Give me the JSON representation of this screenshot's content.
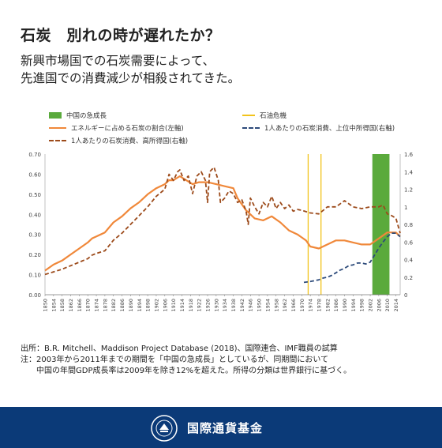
{
  "header": {
    "title": "石炭　別れの時が遅れたか？",
    "subtitle_lines": [
      "新興市場国での石炭需要によって、",
      "先進国での消費減少が相殺されてきた。"
    ]
  },
  "legend": {
    "china": "中国の急成長",
    "oil_crisis": "石油危機",
    "share": "エネルギーに占める石炭の割合(左軸)",
    "upper_middle": "1人あたりの石炭消費、上位中所得国(右軸)",
    "high_income": "1人あたりの石炭消費、高所得国(右軸)"
  },
  "notes": {
    "source": "出所：B.R. Mitchell、Maddison Project Database (2018)、国際連合、IMF職員の試算",
    "note1": "注：2003年から2011年までの期間を「中国の急成長」としているが、同期間において",
    "note2": "中国の年間GDP成長率は2009年を除き12%を超えた。所得の分類は世界銀行に基づく。"
  },
  "footer": {
    "brand": "国際通貨基金",
    "seal_text": "INTERNATIONAL MONETARY FUND"
  },
  "colors": {
    "china": "#5aaa3c",
    "oil": "#f2c31c",
    "share": "#f0883a",
    "upper_middle": "#2c4a7a",
    "high_income": "#9c4a1a",
    "footer": "#0b3a78"
  },
  "chart_data": {
    "type": "line",
    "x_range": [
      1850,
      2016
    ],
    "x_ticks": [
      1850,
      1854,
      1858,
      1862,
      1866,
      1870,
      1874,
      1878,
      1882,
      1886,
      1890,
      1894,
      1898,
      1902,
      1906,
      1910,
      1914,
      1918,
      1922,
      1926,
      1930,
      1934,
      1938,
      1942,
      1946,
      1950,
      1954,
      1958,
      1962,
      1966,
      1970,
      1974,
      1978,
      1982,
      1986,
      1990,
      1994,
      1998,
      2002,
      2006,
      2010,
      2014
    ],
    "y_left": {
      "range": [
        0,
        0.7
      ],
      "ticks": [
        "0.00",
        "0.10",
        "0.20",
        "0.30",
        "0.40",
        "0.50",
        "0.60",
        "0.70"
      ]
    },
    "y_right": {
      "range": [
        0,
        1.6
      ],
      "ticks": [
        "0",
        "0.2",
        "0.4",
        "0.6",
        "0.8",
        "1",
        "1.2",
        "1.4",
        "1.6"
      ]
    },
    "shaded_periods": [
      {
        "from": 2003,
        "to": 2011
      }
    ],
    "vertical_lines": [
      1973,
      1979
    ],
    "series": [
      {
        "name": "エネルギーに占める石炭の割合(左軸)",
        "axis": "left",
        "x": [
          1850,
          1854,
          1858,
          1862,
          1866,
          1870,
          1872,
          1874,
          1878,
          1882,
          1886,
          1890,
          1894,
          1898,
          1902,
          1906,
          1908,
          1910,
          1913,
          1916,
          1919,
          1922,
          1926,
          1930,
          1934,
          1938,
          1940,
          1944,
          1948,
          1952,
          1956,
          1960,
          1964,
          1968,
          1972,
          1974,
          1978,
          1982,
          1986,
          1990,
          1994,
          1998,
          2002,
          2006,
          2010,
          2014,
          2016
        ],
        "values": [
          0.12,
          0.15,
          0.17,
          0.2,
          0.23,
          0.26,
          0.28,
          0.29,
          0.31,
          0.36,
          0.39,
          0.43,
          0.46,
          0.5,
          0.53,
          0.55,
          0.57,
          0.57,
          0.59,
          0.57,
          0.55,
          0.56,
          0.56,
          0.55,
          0.54,
          0.53,
          0.48,
          0.42,
          0.38,
          0.37,
          0.39,
          0.36,
          0.32,
          0.3,
          0.27,
          0.24,
          0.23,
          0.25,
          0.27,
          0.27,
          0.26,
          0.25,
          0.25,
          0.28,
          0.31,
          0.31,
          0.29
        ]
      },
      {
        "name": "1人あたりの石炭消費、高所得国(右軸)",
        "axis": "right",
        "x": [
          1850,
          1854,
          1858,
          1862,
          1866,
          1870,
          1872,
          1874,
          1878,
          1882,
          1886,
          1890,
          1894,
          1898,
          1902,
          1906,
          1908,
          1910,
          1912,
          1913,
          1915,
          1917,
          1919,
          1921,
          1923,
          1925,
          1926,
          1927,
          1929,
          1931,
          1932,
          1934,
          1936,
          1938,
          1940,
          1942,
          1944,
          1945,
          1946,
          1948,
          1950,
          1952,
          1954,
          1956,
          1958,
          1960,
          1962,
          1964,
          1966,
          1968,
          1970,
          1974,
          1978,
          1982,
          1986,
          1990,
          1994,
          1998,
          2002,
          2006,
          2008,
          2010,
          2012,
          2014,
          2016
        ],
        "values": [
          0.23,
          0.26,
          0.29,
          0.33,
          0.37,
          0.41,
          0.45,
          0.47,
          0.5,
          0.62,
          0.7,
          0.8,
          0.9,
          1.0,
          1.12,
          1.2,
          1.37,
          1.3,
          1.4,
          1.42,
          1.3,
          1.35,
          1.15,
          1.35,
          1.4,
          1.3,
          1.05,
          1.4,
          1.45,
          1.3,
          1.05,
          1.1,
          1.18,
          1.15,
          1.05,
          1.08,
          0.95,
          0.8,
          1.1,
          1.0,
          0.92,
          1.05,
          1.0,
          1.12,
          0.98,
          1.05,
          0.98,
          1.02,
          0.95,
          0.97,
          0.96,
          0.93,
          0.92,
          1.0,
          1.0,
          1.07,
          1.0,
          0.98,
          1.0,
          1.0,
          1.02,
          0.92,
          0.9,
          0.87,
          0.7
        ]
      },
      {
        "name": "1人あたりの石炭消費、上位中所得国(右軸)",
        "axis": "right",
        "x": [
          1971,
          1974,
          1976,
          1978,
          1980,
          1982,
          1984,
          1986,
          1988,
          1990,
          1992,
          1994,
          1996,
          1998,
          2000,
          2002,
          2004,
          2006,
          2008,
          2010,
          2012,
          2014,
          2016
        ],
        "values": [
          0.14,
          0.15,
          0.16,
          0.17,
          0.19,
          0.2,
          0.22,
          0.25,
          0.28,
          0.3,
          0.33,
          0.34,
          0.36,
          0.36,
          0.35,
          0.37,
          0.45,
          0.53,
          0.6,
          0.66,
          0.7,
          0.7,
          0.66
        ]
      }
    ]
  }
}
